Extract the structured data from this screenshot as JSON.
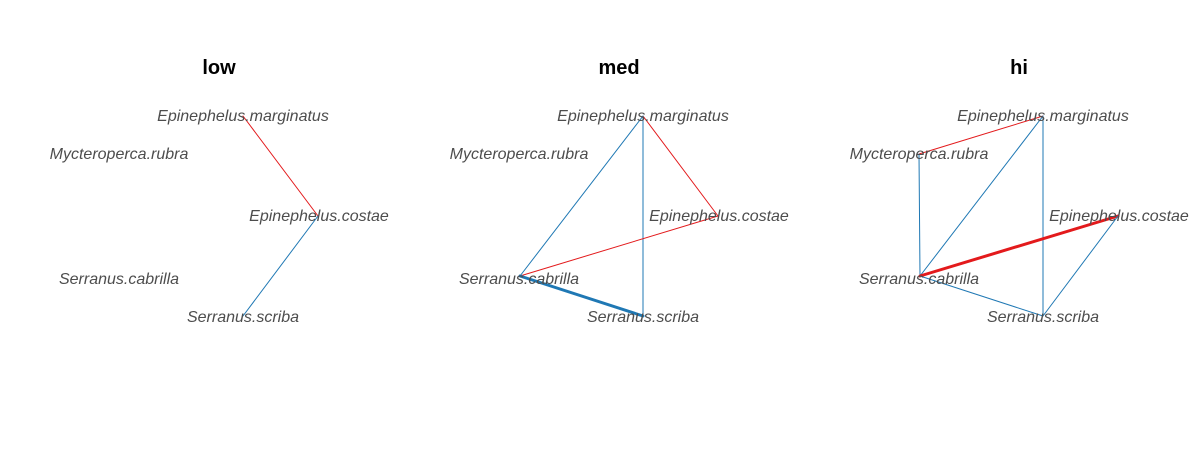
{
  "nodes": {
    "epi_marg": "Epinephelus.marginatus",
    "myc_rub": "Mycteroperca.rubra",
    "epi_cost": "Epinephelus.costae",
    "ser_cab": "Serranus.cabrilla",
    "ser_scr": "Serranus.scriba"
  },
  "colors": {
    "positive": "#e31a1c",
    "negative": "#1f78b4"
  },
  "panels": [
    {
      "title": "low",
      "edges": [
        {
          "from": "epi_marg",
          "to": "epi_cost",
          "sign": "positive",
          "weight": 1
        },
        {
          "from": "epi_cost",
          "to": "ser_scr",
          "sign": "negative",
          "weight": 1
        }
      ]
    },
    {
      "title": "med",
      "edges": [
        {
          "from": "epi_marg",
          "to": "epi_cost",
          "sign": "positive",
          "weight": 1
        },
        {
          "from": "epi_marg",
          "to": "ser_cab",
          "sign": "negative",
          "weight": 1
        },
        {
          "from": "epi_marg",
          "to": "ser_scr",
          "sign": "negative",
          "weight": 1
        },
        {
          "from": "ser_cab",
          "to": "epi_cost",
          "sign": "positive",
          "weight": 1
        },
        {
          "from": "ser_cab",
          "to": "ser_scr",
          "sign": "negative",
          "weight": 3
        }
      ]
    },
    {
      "title": "hi",
      "edges": [
        {
          "from": "myc_rub",
          "to": "epi_marg",
          "sign": "positive",
          "weight": 1
        },
        {
          "from": "myc_rub",
          "to": "ser_cab",
          "sign": "negative",
          "weight": 1
        },
        {
          "from": "epi_marg",
          "to": "ser_cab",
          "sign": "negative",
          "weight": 1
        },
        {
          "from": "epi_marg",
          "to": "ser_scr",
          "sign": "negative",
          "weight": 1
        },
        {
          "from": "ser_cab",
          "to": "epi_cost",
          "sign": "positive",
          "weight": 3
        },
        {
          "from": "ser_cab",
          "to": "ser_scr",
          "sign": "negative",
          "weight": 1
        },
        {
          "from": "epi_cost",
          "to": "ser_scr",
          "sign": "negative",
          "weight": 1
        }
      ]
    }
  ]
}
